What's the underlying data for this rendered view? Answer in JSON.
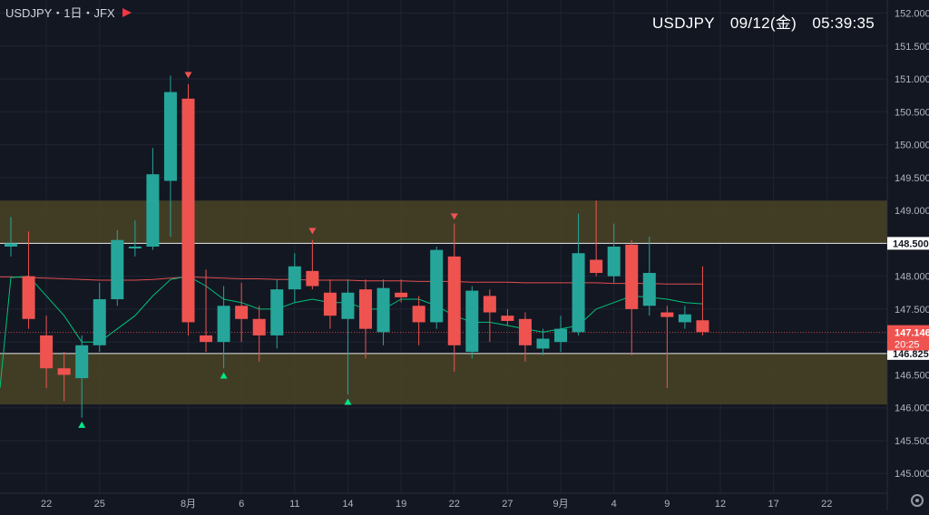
{
  "header": {
    "legend_text": "USDJPY・1日・JFX",
    "clock_text": "USDJPY　09/12(金)　05:39:35",
    "flag_icon": "flag-icon"
  },
  "colors": {
    "background": "#131722",
    "up": "#26a69a",
    "down": "#ef5350",
    "zone_fill": "#433f26",
    "sma_short": "#00c27a",
    "sma_long": "#e04e4e",
    "axis_text": "#b2b5be"
  },
  "price_labels": {
    "upper_line": "148.500",
    "last_price": "147.146",
    "countdown": "20:25",
    "lower_line": "146.825"
  },
  "chart_data": {
    "type": "candlestick",
    "symbol": "USDJPY",
    "timeframe": "1日",
    "ylim": [
      144.7,
      152.2
    ],
    "y_ticks": [
      145.0,
      145.5,
      146.0,
      146.5,
      147.0,
      147.5,
      148.0,
      148.5,
      149.0,
      149.5,
      150.0,
      150.5,
      151.0,
      151.5,
      152.0
    ],
    "y_tick_labels": [
      "145.000",
      "145.500",
      "146.000",
      "146.500",
      "147.000",
      "147.500",
      "148.000",
      "148.500",
      "149.000",
      "149.500",
      "150.000",
      "150.500",
      "151.000",
      "151.500",
      "152.000"
    ],
    "x_tick_labels": [
      {
        "index": 2,
        "label": "22"
      },
      {
        "index": 5,
        "label": "25"
      },
      {
        "index": 10,
        "label": "8月"
      },
      {
        "index": 13,
        "label": "6"
      },
      {
        "index": 16,
        "label": "11"
      },
      {
        "index": 19,
        "label": "14"
      },
      {
        "index": 22,
        "label": "19"
      },
      {
        "index": 25,
        "label": "22"
      },
      {
        "index": 28,
        "label": "27"
      },
      {
        "index": 31,
        "label": "9月"
      },
      {
        "index": 34,
        "label": "4"
      },
      {
        "index": 37,
        "label": "9"
      },
      {
        "index": 40,
        "label": "12"
      },
      {
        "index": 43,
        "label": "17"
      },
      {
        "index": 46,
        "label": "22"
      }
    ],
    "candles": [
      {
        "o": 148.45,
        "h": 148.9,
        "l": 148.3,
        "c": 148.5
      },
      {
        "o": 148.0,
        "h": 148.68,
        "l": 147.2,
        "c": 147.35
      },
      {
        "o": 147.1,
        "h": 147.4,
        "l": 146.3,
        "c": 146.6
      },
      {
        "o": 146.6,
        "h": 146.85,
        "l": 146.1,
        "c": 146.5
      },
      {
        "o": 146.45,
        "h": 147.1,
        "l": 145.85,
        "c": 146.95
      },
      {
        "o": 146.95,
        "h": 147.9,
        "l": 146.85,
        "c": 147.65
      },
      {
        "o": 147.65,
        "h": 148.7,
        "l": 147.55,
        "c": 148.55
      },
      {
        "o": 148.45,
        "h": 148.85,
        "l": 148.3,
        "c": 148.45
      },
      {
        "o": 148.45,
        "h": 149.95,
        "l": 148.4,
        "c": 149.55
      },
      {
        "o": 149.45,
        "h": 151.05,
        "l": 148.6,
        "c": 150.8
      },
      {
        "o": 150.7,
        "h": 150.92,
        "l": 147.1,
        "c": 147.3
      },
      {
        "o": 147.1,
        "h": 148.1,
        "l": 146.85,
        "c": 147.0
      },
      {
        "o": 147.0,
        "h": 147.85,
        "l": 146.6,
        "c": 147.55
      },
      {
        "o": 147.55,
        "h": 147.9,
        "l": 147.0,
        "c": 147.35
      },
      {
        "o": 147.35,
        "h": 147.55,
        "l": 146.7,
        "c": 147.1
      },
      {
        "o": 147.1,
        "h": 147.95,
        "l": 146.9,
        "c": 147.8
      },
      {
        "o": 147.8,
        "h": 148.35,
        "l": 147.6,
        "c": 148.15
      },
      {
        "o": 148.08,
        "h": 148.55,
        "l": 147.8,
        "c": 147.85
      },
      {
        "o": 147.75,
        "h": 147.95,
        "l": 147.2,
        "c": 147.4
      },
      {
        "o": 147.35,
        "h": 147.95,
        "l": 146.2,
        "c": 147.75
      },
      {
        "o": 147.8,
        "h": 147.95,
        "l": 146.75,
        "c": 147.2
      },
      {
        "o": 147.15,
        "h": 147.95,
        "l": 146.95,
        "c": 147.82
      },
      {
        "o": 147.75,
        "h": 147.95,
        "l": 147.6,
        "c": 147.68
      },
      {
        "o": 147.55,
        "h": 147.7,
        "l": 146.95,
        "c": 147.3
      },
      {
        "o": 147.3,
        "h": 148.45,
        "l": 147.2,
        "c": 148.4
      },
      {
        "o": 148.3,
        "h": 148.8,
        "l": 146.55,
        "c": 146.95
      },
      {
        "o": 146.85,
        "h": 147.85,
        "l": 146.75,
        "c": 147.78
      },
      {
        "o": 147.7,
        "h": 147.8,
        "l": 147.0,
        "c": 147.45
      },
      {
        "o": 147.4,
        "h": 147.5,
        "l": 147.25,
        "c": 147.32
      },
      {
        "o": 147.35,
        "h": 147.45,
        "l": 146.7,
        "c": 146.95
      },
      {
        "o": 146.9,
        "h": 147.2,
        "l": 146.8,
        "c": 147.05
      },
      {
        "o": 147.0,
        "h": 147.4,
        "l": 146.85,
        "c": 147.2
      },
      {
        "o": 147.15,
        "h": 148.95,
        "l": 147.1,
        "c": 148.35
      },
      {
        "o": 148.25,
        "h": 149.15,
        "l": 148.0,
        "c": 148.05
      },
      {
        "o": 148.0,
        "h": 148.8,
        "l": 147.9,
        "c": 148.45
      },
      {
        "o": 148.48,
        "h": 148.55,
        "l": 146.8,
        "c": 147.5
      },
      {
        "o": 147.55,
        "h": 148.6,
        "l": 147.4,
        "c": 148.05
      },
      {
        "o": 147.45,
        "h": 147.55,
        "l": 146.3,
        "c": 147.38
      },
      {
        "o": 147.3,
        "h": 147.55,
        "l": 147.2,
        "c": 147.42
      },
      {
        "o": 147.33,
        "h": 148.15,
        "l": 147.1,
        "c": 147.15
      }
    ],
    "sma_short": [
      147.98,
      148.0,
      147.7,
      147.4,
      147.0,
      147.0,
      147.2,
      147.4,
      147.7,
      147.95,
      148.0,
      147.85,
      147.65,
      147.6,
      147.5,
      147.5,
      147.6,
      147.65,
      147.6,
      147.6,
      147.5,
      147.5,
      147.65,
      147.65,
      147.55,
      147.4,
      147.3,
      147.3,
      147.25,
      147.2,
      147.15,
      147.2,
      147.25,
      147.5,
      147.6,
      147.7,
      147.68,
      147.65,
      147.6,
      147.58
    ],
    "sma_long": [
      147.99,
      147.98,
      147.97,
      147.96,
      147.95,
      147.94,
      147.94,
      147.94,
      147.95,
      147.97,
      147.99,
      147.98,
      147.97,
      147.96,
      147.96,
      147.95,
      147.95,
      147.94,
      147.94,
      147.94,
      147.93,
      147.93,
      147.93,
      147.92,
      147.92,
      147.92,
      147.91,
      147.91,
      147.91,
      147.9,
      147.9,
      147.9,
      147.9,
      147.9,
      147.89,
      147.89,
      147.89,
      147.88,
      147.88,
      147.88
    ],
    "zones": [
      {
        "from": 148.5,
        "to": 149.15
      },
      {
        "from": 146.05,
        "to": 146.825
      }
    ],
    "hlines": [
      148.5,
      146.825
    ],
    "last_price": 147.146,
    "markers": [
      {
        "index": 4,
        "kind": "up",
        "price": 145.75
      },
      {
        "index": 10,
        "kind": "down",
        "price": 151.05
      },
      {
        "index": 12,
        "kind": "up",
        "price": 146.5
      },
      {
        "index": 17,
        "kind": "down",
        "price": 148.68
      },
      {
        "index": 19,
        "kind": "up",
        "price": 146.1
      },
      {
        "index": 25,
        "kind": "down",
        "price": 148.9
      }
    ]
  }
}
